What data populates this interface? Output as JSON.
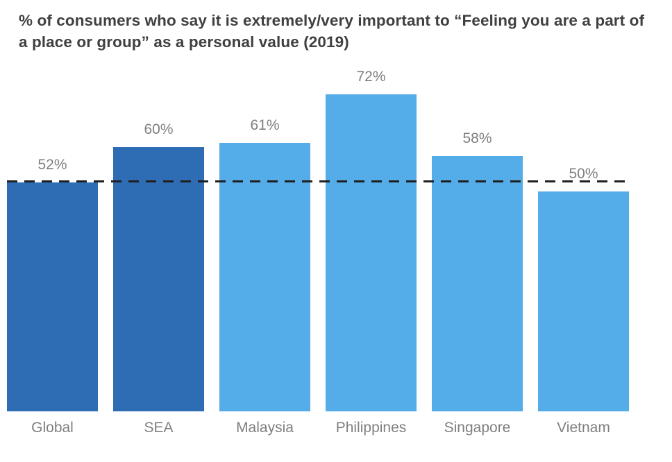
{
  "chart_data": {
    "type": "bar",
    "title": "% of consumers who say it is extremely/very important to “Feeling you are a part of a place or group” as a personal value (2019)",
    "categories": [
      "Global",
      "SEA",
      "Malaysia",
      "Philippines",
      "Singapore",
      "Vietnam"
    ],
    "values": [
      52,
      60,
      61,
      72,
      58,
      50
    ],
    "labels": [
      "52%",
      "60%",
      "61%",
      "72%",
      "58%",
      "50%"
    ],
    "bar_colors": [
      "#2E6DB4",
      "#2E6DB4",
      "#54ACE8",
      "#54ACE8",
      "#54ACE8",
      "#54ACE8"
    ],
    "reference_line": {
      "value": 52,
      "style": "dashed",
      "color": "#1F1F1F"
    },
    "xlabel": "",
    "ylabel": "",
    "ylim": [
      0,
      78
    ],
    "grid": false,
    "legend": false,
    "colors": {
      "dark_blue": "#2E6DB4",
      "light_blue": "#54ACE8",
      "title_text": "#404040",
      "axis_label_text": "#7F7F7F",
      "background": "#FFFFFF"
    }
  }
}
